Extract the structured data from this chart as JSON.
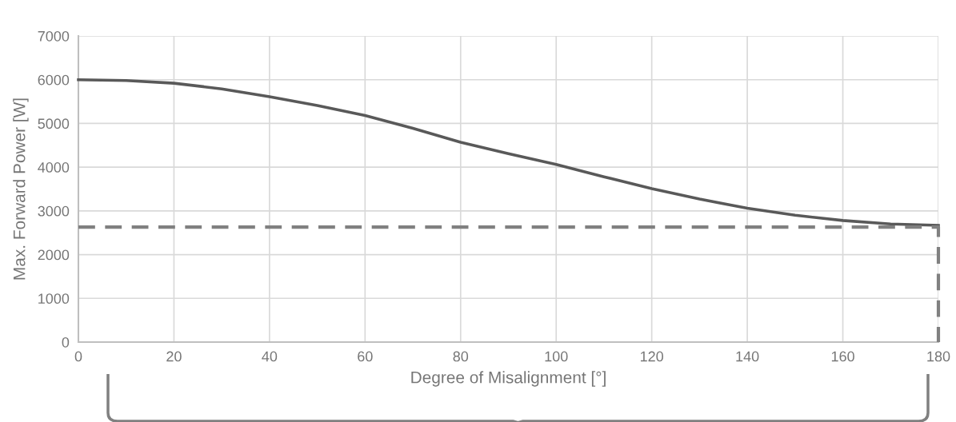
{
  "chart_data": {
    "type": "line",
    "xlabel": "Degree of Misalignment [°]",
    "ylabel": "Max. Forward Power [W]",
    "xlim": [
      0,
      180
    ],
    "xticks": [
      0,
      20,
      40,
      60,
      80,
      100,
      120,
      140,
      160,
      180
    ],
    "ylim": [
      0,
      7000
    ],
    "yticks": [
      0,
      1000,
      2000,
      3000,
      4000,
      5000,
      6000,
      7000
    ],
    "grid": true,
    "series": [
      {
        "color": "#595959",
        "line_style": "solid",
        "x": [
          0,
          10,
          20,
          30,
          40,
          50,
          60,
          70,
          80,
          90,
          100,
          110,
          120,
          130,
          140,
          150,
          160,
          170,
          180
        ],
        "values": [
          6000,
          5980,
          5920,
          5790,
          5610,
          5410,
          5180,
          4890,
          4570,
          4310,
          4060,
          3780,
          3510,
          3270,
          3060,
          2900,
          2780,
          2700,
          2670
        ]
      },
      {
        "color": "#808080",
        "line_style": "dashed",
        "x": [
          0,
          180,
          180
        ],
        "values": [
          2630,
          2630,
          0
        ]
      }
    ]
  }
}
